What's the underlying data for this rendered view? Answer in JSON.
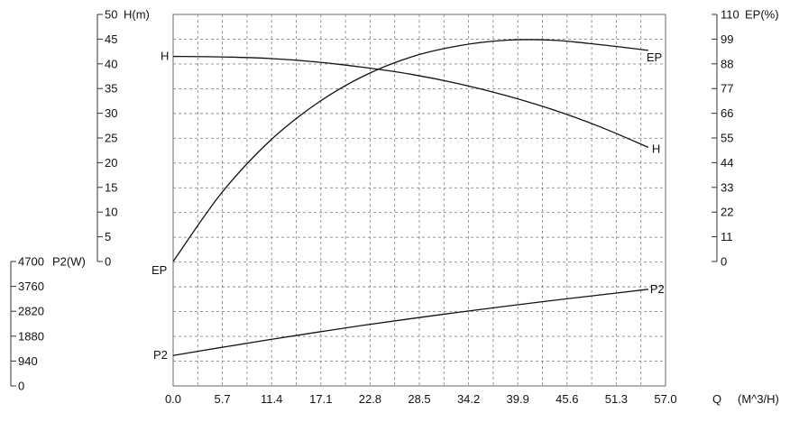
{
  "chart_data": {
    "type": "line",
    "x_axis": {
      "label": "Q",
      "unit": "(M^3/H)",
      "min": 0,
      "max": 57,
      "ticks": [
        "0.0",
        "5.7",
        "11.4",
        "17.1",
        "22.8",
        "28.5",
        "34.2",
        "39.9",
        "45.6",
        "51.3",
        "57.0"
      ]
    },
    "left_axis_top": {
      "label": "H(m)",
      "min": 0,
      "max": 50,
      "ticks": [
        "0",
        "5",
        "10",
        "15",
        "20",
        "25",
        "30",
        "35",
        "40",
        "45",
        "50"
      ]
    },
    "left_axis_bottom": {
      "label": "P2(W)",
      "min": 0,
      "max": 4700,
      "ticks": [
        "0",
        "940",
        "1880",
        "2820",
        "3760",
        "4700"
      ]
    },
    "right_axis": {
      "label": "EP(%)",
      "min": 0,
      "max": 110,
      "ticks": [
        "0",
        "11",
        "22",
        "33",
        "44",
        "55",
        "66",
        "77",
        "88",
        "99",
        "110"
      ]
    },
    "grid": true,
    "series": [
      {
        "name": "H",
        "axis": "H",
        "label_start": "H",
        "label_end": "H",
        "points": [
          [
            0,
            41.5
          ],
          [
            5.7,
            41.4
          ],
          [
            11.4,
            41.1
          ],
          [
            17.1,
            40.4
          ],
          [
            22.8,
            39.3
          ],
          [
            28.5,
            37.9
          ],
          [
            34.2,
            36.0
          ],
          [
            39.9,
            33.6
          ],
          [
            45.6,
            30.7
          ],
          [
            51.3,
            27.2
          ],
          [
            57.0,
            23.1
          ]
        ]
      },
      {
        "name": "EP",
        "axis": "EP",
        "label_start": "EP",
        "label_end": "EP",
        "points": [
          [
            0,
            0
          ],
          [
            5.7,
            30
          ],
          [
            11.4,
            53
          ],
          [
            17.1,
            70
          ],
          [
            22.8,
            82.5
          ],
          [
            28.5,
            91
          ],
          [
            34.2,
            96
          ],
          [
            39.9,
            98.5
          ],
          [
            45.6,
            98.5
          ],
          [
            51.3,
            96.5
          ],
          [
            57.0,
            94
          ]
        ]
      },
      {
        "name": "P2",
        "axis": "P2",
        "label_start": "P2",
        "label_end": "P2",
        "points": [
          [
            0,
            1150
          ],
          [
            5.7,
            1450
          ],
          [
            11.4,
            1740
          ],
          [
            17.1,
            2020
          ],
          [
            22.8,
            2290
          ],
          [
            28.5,
            2540
          ],
          [
            34.2,
            2780
          ],
          [
            39.9,
            3010
          ],
          [
            45.6,
            3230
          ],
          [
            51.3,
            3440
          ],
          [
            57.0,
            3650
          ]
        ]
      }
    ]
  }
}
